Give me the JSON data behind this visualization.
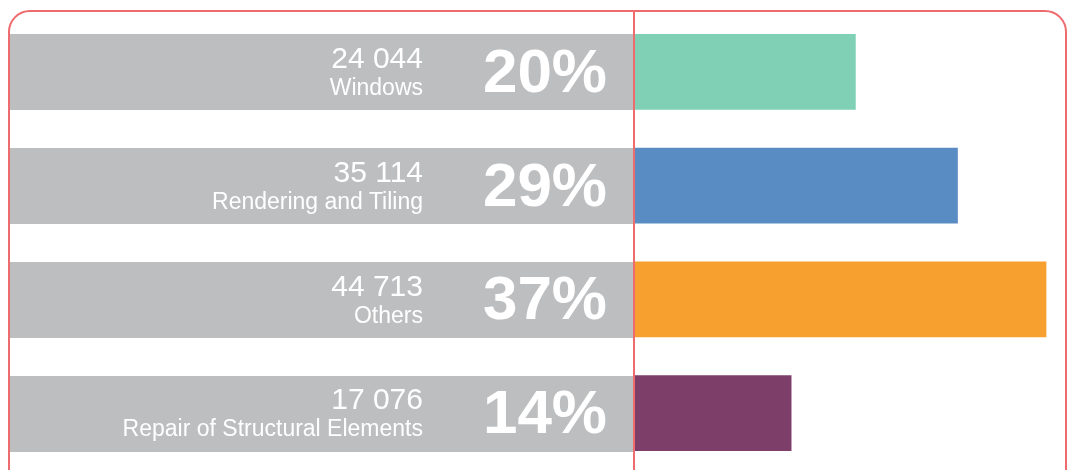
{
  "chart_data": {
    "type": "bar",
    "orientation": "horizontal",
    "categories": [
      "Windows",
      "Rendering and Tiling",
      "Others",
      "Repair of Structural Elements"
    ],
    "values": [
      24044,
      35114,
      44713,
      17076
    ],
    "value_labels": [
      "24 044",
      "35 114",
      "44 713",
      "17 076"
    ],
    "colors": [
      "#7fd0b5",
      "#5a8cc4",
      "#f7a030",
      "#7d3f6a"
    ],
    "annotations": [
      "20%",
      "29%",
      "37%",
      "14%"
    ]
  }
}
